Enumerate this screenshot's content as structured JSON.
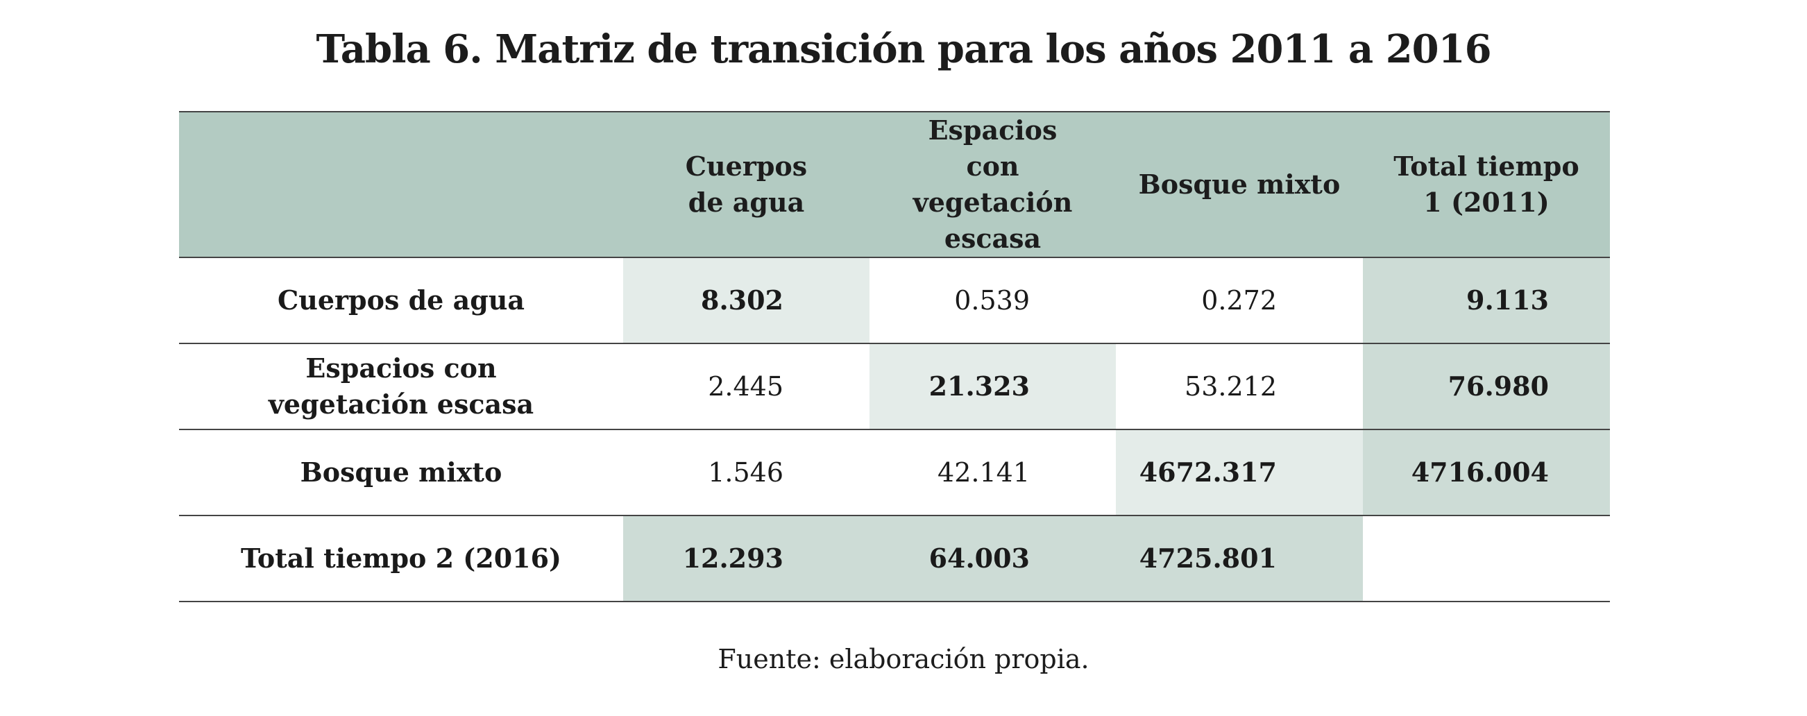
{
  "title": "Tabla 6. Matriz de transición para los años 2011 a 2016",
  "table": {
    "headers": [
      "",
      "Cuerpos de agua",
      "Espacios con vegetación escasa",
      "Bosque mixto",
      "Total tiempo 1 (2011)"
    ],
    "rows": [
      {
        "label": "Cuerpos de agua",
        "cells": [
          "8.302",
          "0.539",
          "0.272",
          "9.113"
        ]
      },
      {
        "label": "Espacios con vegetación escasa",
        "cells": [
          "2.445",
          "21.323",
          "53.212",
          "76.980"
        ]
      },
      {
        "label": "Bosque mixto",
        "cells": [
          "1.546",
          "42.141",
          "4672.317",
          "4716.004"
        ]
      },
      {
        "label": "Total tiempo 2 (2016)",
        "cells": [
          "12.293",
          "64.003",
          "4725.801",
          ""
        ]
      }
    ]
  },
  "source": "Fuente: elaboración propia.",
  "colors": {
    "header_bg": "#b3cbc2",
    "diagonal_bg": "#e4ece9",
    "total_bg": "#cddcd6"
  }
}
